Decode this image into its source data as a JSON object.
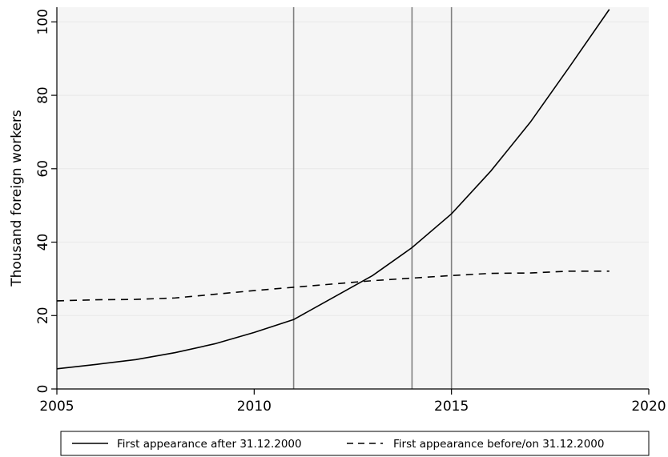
{
  "chart_data": {
    "type": "line",
    "title": "",
    "xlabel": "",
    "ylabel": "Thousand foreign workers",
    "xlim": [
      2005,
      2020
    ],
    "ylim": [
      0,
      104
    ],
    "xticks": [
      "2005",
      "2010",
      "2015",
      "2020"
    ],
    "yticks": [
      "0",
      "20",
      "40",
      "60",
      "80",
      "100"
    ],
    "grid": true,
    "legend_position": "bottom",
    "vertical_lines": [
      2011,
      2014,
      2015
    ],
    "series": [
      {
        "name": "First appearance after 31.12.2000",
        "style": "solid",
        "color": "#000000",
        "x": [
          2005,
          2006,
          2007,
          2008,
          2009,
          2010,
          2011,
          2012,
          2013,
          2014,
          2015,
          2016,
          2017,
          2018,
          2019
        ],
        "y": [
          5.5,
          6.7,
          8.0,
          9.9,
          12.3,
          15.4,
          18.9,
          24.9,
          30.9,
          38.5,
          47.7,
          59.4,
          72.7,
          87.9,
          103.4
        ]
      },
      {
        "name": "First appearance before/on 31.12.2000",
        "style": "dashed",
        "color": "#000000",
        "x": [
          2005,
          2006,
          2007,
          2008,
          2009,
          2010,
          2011,
          2012,
          2013,
          2014,
          2015,
          2016,
          2017,
          2018,
          2019
        ],
        "y": [
          24.0,
          24.3,
          24.4,
          24.8,
          25.8,
          26.8,
          27.7,
          28.6,
          29.5,
          30.2,
          30.9,
          31.5,
          31.6,
          32.1,
          32.1
        ]
      }
    ]
  },
  "colors": {
    "plot_background": "#f5f5f5",
    "gridline": "#e8e8e8",
    "vertical_line": "#808080"
  }
}
